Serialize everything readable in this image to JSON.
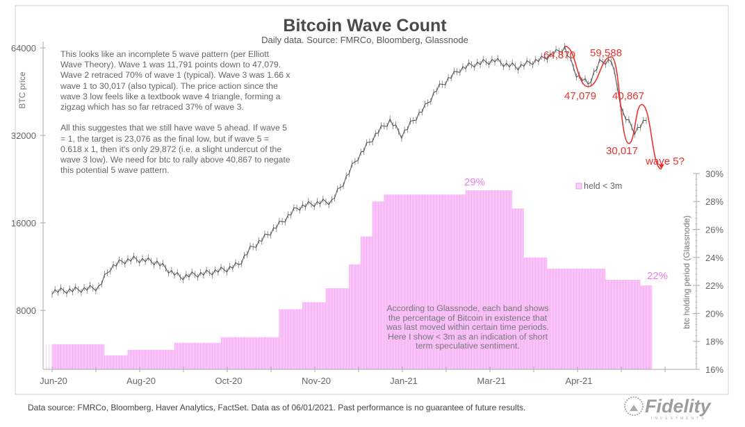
{
  "chart_data": {
    "type": "line",
    "title": "Bitcoin Wave Count",
    "subtitle": "Daily data.  Source: FMRCo, Bloomberg, Glassnode",
    "x_tick_labels": [
      "Jun-20",
      "Aug-20",
      "Oct-20",
      "Nov-20",
      "Jan-21",
      "Mar-21",
      "Apr-21"
    ],
    "y_left": {
      "label": "BTC price",
      "scale": "log2",
      "ticks": [
        8000,
        16000,
        32000,
        64000
      ],
      "tick_labels": [
        "8000",
        "16000",
        "32000",
        "64000"
      ],
      "range": [
        5200,
        72000
      ]
    },
    "y_right": {
      "label": "btc holding period (Glassnode)",
      "range": [
        16,
        30
      ],
      "ticks": [
        16,
        18,
        20,
        22,
        24,
        26,
        28,
        30
      ],
      "tick_labels": [
        "16%",
        "18%",
        "20%",
        "22%",
        "24%",
        "26%",
        "28%",
        "30%"
      ]
    },
    "grid": false,
    "series": [
      {
        "type": "line",
        "axis": "left",
        "color": "#555555",
        "values": [
          9300,
          9350,
          9400,
          9500,
          9600,
          11200,
          11800,
          12000,
          11900,
          11700,
          11000,
          10400,
          10600,
          10700,
          10900,
          11100,
          11500,
          13000,
          14000,
          15200,
          16500,
          18000,
          18500,
          18800,
          19000,
          22000,
          26000,
          29500,
          33000,
          36000,
          32000,
          36000,
          40000,
          46000,
          50000,
          54000,
          56000,
          57000,
          58000,
          56000,
          55000,
          57000,
          58500,
          61000,
          64000,
          52000,
          48000,
          57000,
          58000,
          38000,
          33000,
          36000
        ]
      },
      {
        "type": "bar",
        "axis": "right",
        "name": "held < 3m",
        "color": "#f9c2f8",
        "values": [
          17.8,
          17.8,
          17.8,
          17.8,
          17.8,
          17.0,
          17.0,
          17.4,
          17.4,
          17.4,
          17.4,
          17.9,
          17.9,
          17.9,
          17.9,
          18.3,
          18.3,
          18.3,
          18.3,
          18.3,
          20.3,
          20.3,
          20.8,
          20.8,
          21.8,
          21.8,
          23.5,
          25.5,
          28.0,
          28.5,
          28.5,
          28.5,
          28.5,
          28.5,
          28.5,
          28.5,
          28.8,
          28.8,
          28.8,
          28.8,
          27.5,
          24.0,
          24.0,
          23.2,
          23.2,
          23.2,
          23.2,
          23.2,
          22.4,
          22.4,
          22.4,
          22.0
        ]
      }
    ],
    "wave_path": {
      "color": "#e8322e",
      "points": [
        [
          44,
          64870
        ],
        [
          46,
          47079
        ],
        [
          48,
          59588
        ],
        [
          49.5,
          30017
        ],
        [
          50.6,
          40867
        ],
        [
          52.3,
          24500
        ]
      ]
    },
    "annotations": {
      "peak1": "64,870",
      "low1": "47,079",
      "peak2": "59,588",
      "low2": "30,017",
      "peak3": "40,867",
      "wave5": "wave 5?",
      "pct_peak": "29%",
      "pct_last": "22%"
    },
    "legend": {
      "label": "held < 3m",
      "placement": "center-right"
    },
    "note_top": [
      "This looks like an incomplete 5 wave pattern (per Elliott",
      "Wave Theory).   Wave 1 was 11,791 points down to 47,079.",
      "Wave 2 retraced 70% of wave 1 (typical). Wave 3 was 1.66 x",
      "wave 1 to 30,017 (also typical). The price action since the",
      "wave 3 low feels like a textbook wave 4 triangle, forming a",
      "zigzag which has so far retraced 37% of wave 3.",
      "",
      "All this suggestes that we still have wave 5 ahead.  If wave 5",
      "= 1, the target is 23,076 as the final low, but if wave 5 =",
      "0.618 x 1, then it's only 29,872 (i.e. a slight undercut  of the",
      "wave 3 low). We need for btc to rally above 40,867 to negate",
      "this potential 5 wave pattern."
    ],
    "note_bottom": [
      "According to Glassnode, each band shows",
      "the percentage of Bitcoin in existence that",
      "was last moved within certain time periods.",
      "Here I show < 3m as an indication of short",
      "term speculative sentiment."
    ]
  },
  "footer": "Data source: FMRCo, Bloomberg, Haver Analytics, FactSet. Data as of 06/01/2021. Past performance is no guarantee of future results.",
  "logo": {
    "name": "Fidelity",
    "sub": "INVESTMENTS"
  }
}
